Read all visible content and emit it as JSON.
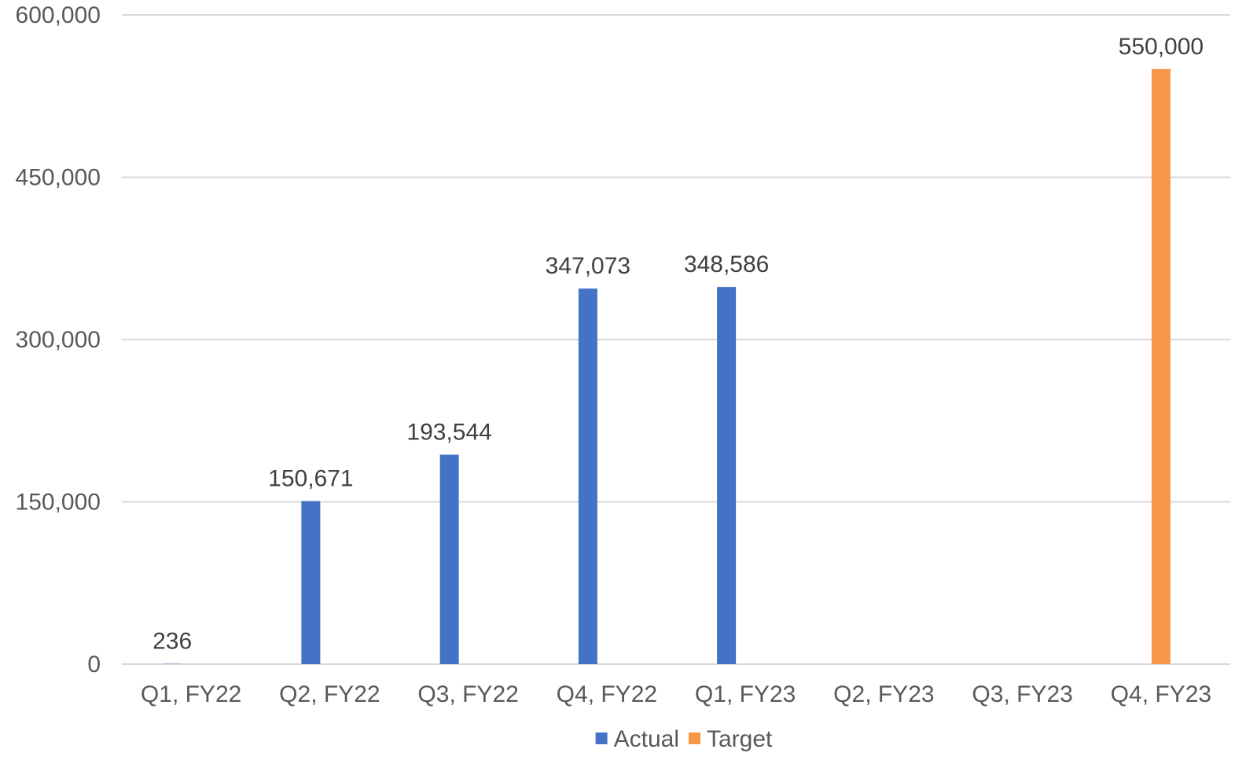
{
  "chart_data": {
    "type": "bar",
    "title": "",
    "xlabel": "",
    "ylabel": "",
    "categories": [
      "Q1, FY22",
      "Q2, FY22",
      "Q3, FY22",
      "Q4, FY22",
      "Q1, FY23",
      "Q2, FY23",
      "Q3, FY23",
      "Q4, FY23"
    ],
    "ylim": [
      0,
      600000
    ],
    "yticks": [
      0,
      150000,
      300000,
      450000,
      600000
    ],
    "ytick_labels": [
      "0",
      "150,000",
      "300,000",
      "450,000",
      "600,000"
    ],
    "grid": true,
    "legend_position": "bottom",
    "series": [
      {
        "name": "Actual",
        "color": "#4472c4",
        "values": [
          236,
          150671,
          193544,
          347073,
          348586,
          null,
          null,
          null
        ],
        "labels": [
          "236",
          "150,671",
          "193,544",
          "347,073",
          "348,586",
          "",
          "",
          ""
        ]
      },
      {
        "name": "Target",
        "color": "#f79646",
        "values": [
          null,
          null,
          null,
          null,
          null,
          null,
          null,
          550000
        ],
        "labels": [
          "",
          "",
          "",
          "",
          "",
          "",
          "",
          "550,000"
        ]
      }
    ]
  }
}
